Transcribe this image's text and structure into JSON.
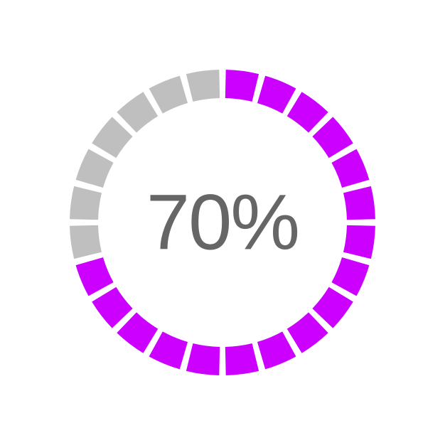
{
  "progress_gauge": {
    "type": "radial-progress",
    "percent": 70,
    "label": "70%",
    "segments_total": 24,
    "segments_filled": 17,
    "fill_start_index": 0,
    "fill_direction": "clockwise",
    "start_angle_deg": -90,
    "gap_deg": 2.5,
    "outer_radius": 215,
    "inner_radius": 175,
    "filled_color": "#cc00ff",
    "empty_color": "#bfbfbf",
    "background_color": "#ffffff",
    "label_color": "#666666",
    "label_fontsize": 110,
    "label_fontweight": 400,
    "canvas_size": 460
  }
}
